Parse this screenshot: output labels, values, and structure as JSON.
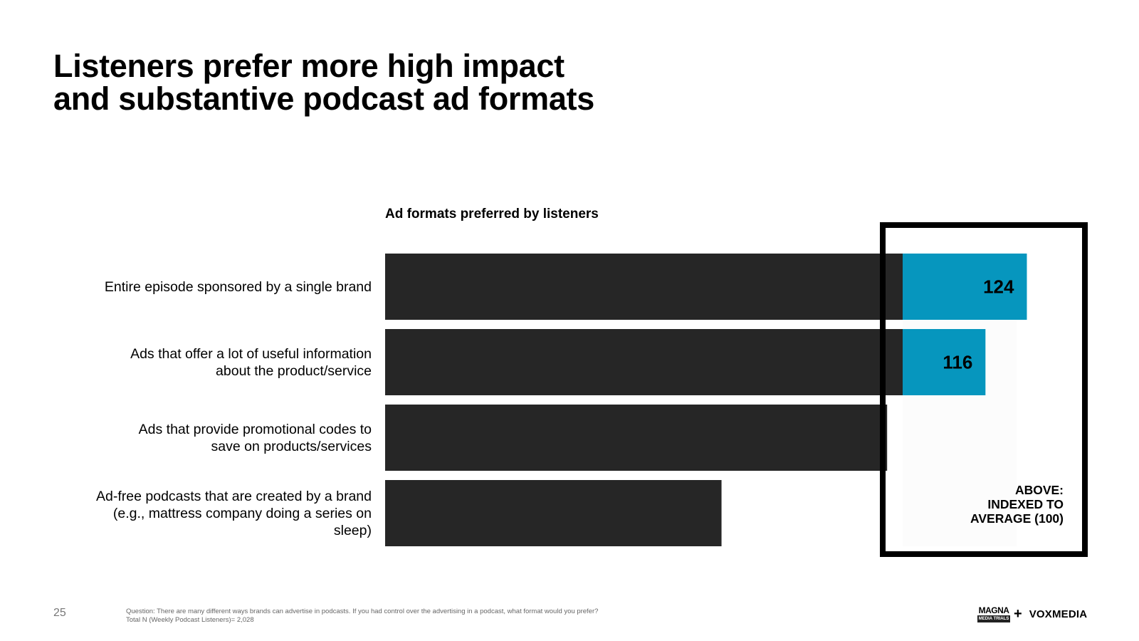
{
  "title": {
    "line1": "Listeners prefer more high impact",
    "line2": "and substantive podcast ad formats"
  },
  "chart_data": {
    "type": "bar",
    "orientation": "horizontal",
    "title": "Ad formats preferred by listeners",
    "categories": [
      [
        "Entire episode sponsored by a single brand"
      ],
      [
        "Ads that offer a lot of useful information",
        "about the product/service"
      ],
      [
        "Ads that provide promotional codes to",
        "save on products/services"
      ],
      [
        "Ad-free podcasts that are created by a brand",
        "(e.g., mattress company doing a series on",
        "sleep)"
      ]
    ],
    "values": [
      124,
      116,
      97,
      65
    ],
    "data_labels": [
      "124",
      "116",
      "",
      ""
    ],
    "index_threshold": 100,
    "xlim": [
      0,
      130
    ],
    "colors": {
      "base": "#262626",
      "above_index": "#0696BE",
      "box": "#000000"
    }
  },
  "annotation": {
    "line1": "ABOVE:",
    "line2": "INDEXED TO",
    "line3": "AVERAGE (100)"
  },
  "footer": {
    "page_number": "25",
    "question": "Question: There are many different ways brands can advertise in podcasts. If you had control over the advertising in a podcast, what format would you prefer?",
    "base": "Total N (Weekly Podcast Listeners)= 2,028",
    "logo_magna_top": "MAGNA",
    "logo_magna_bottom": "MEDIA TRIALS",
    "logo_plus": "+",
    "logo_vox": "VOXMEDIA"
  }
}
